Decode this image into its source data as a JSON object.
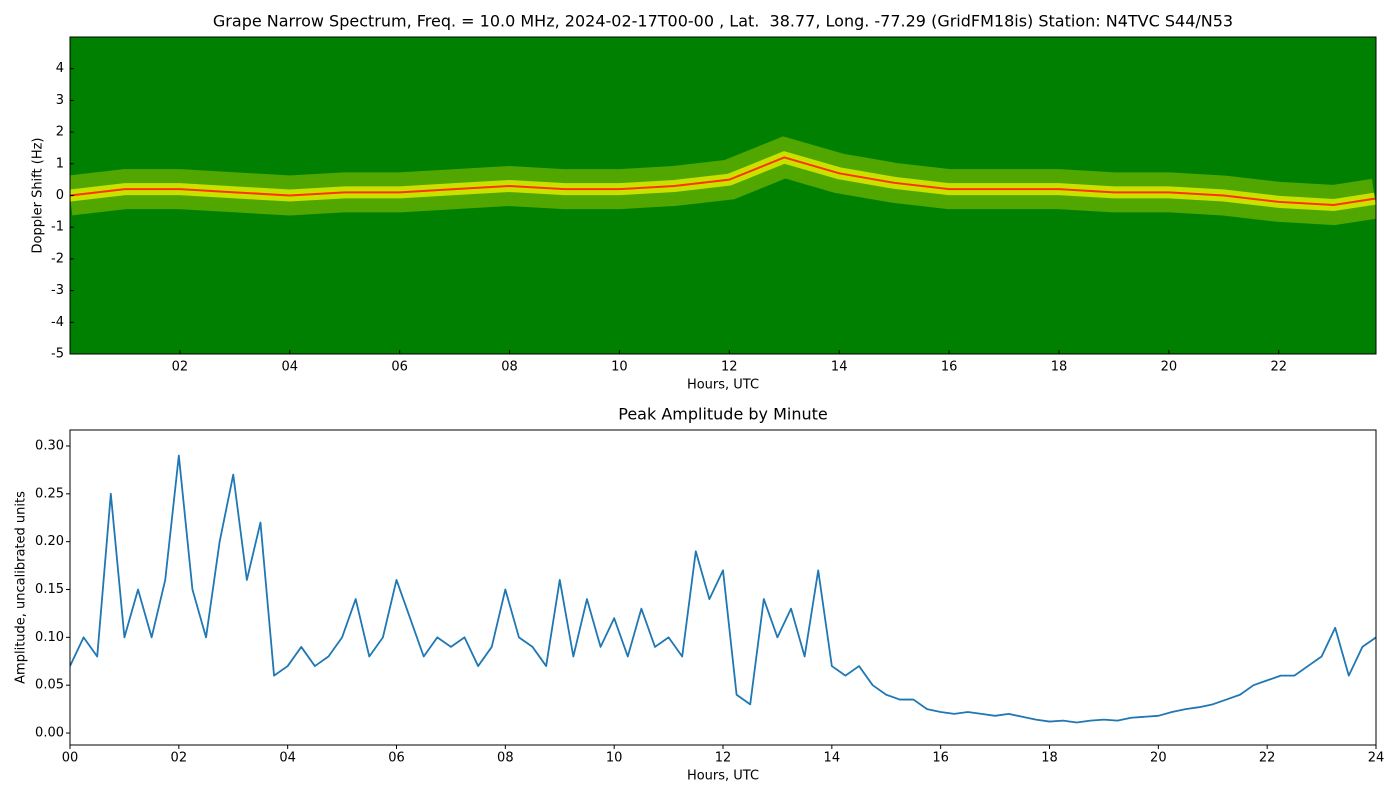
{
  "chart_data": [
    {
      "type": "spectrogram",
      "title": "Grape Narrow Spectrum, Freq. = 10.0 MHz, 2024-02-17T00-00 , Lat.  38.77, Long. -77.29 (GridFM18is) Station: N4TVC S44/N53",
      "xlabel": "Hours, UTC",
      "ylabel": "Doppler Shift (Hz)",
      "background_color": "#008000",
      "band_color": "#e8f000",
      "color": "#ff3300",
      "x": [
        0,
        1,
        2,
        3,
        4,
        5,
        6,
        7,
        8,
        9,
        10,
        11,
        12,
        13,
        14,
        15,
        16,
        17,
        18,
        19,
        20,
        21,
        22,
        23,
        23.75
      ],
      "values": [
        0,
        0.2,
        0.2,
        0.1,
        0,
        0.1,
        0.1,
        0.2,
        0.3,
        0.2,
        0.2,
        0.3,
        0.5,
        1.2,
        0.7,
        0.4,
        0.2,
        0.2,
        0.2,
        0.1,
        0.1,
        0,
        -0.2,
        -0.3,
        -0.1
      ],
      "xlim": [
        0,
        23.77
      ],
      "ylim": [
        -5,
        5
      ],
      "xticks": [
        {
          "value": 2,
          "label": "02"
        },
        {
          "value": 4,
          "label": "04"
        },
        {
          "value": 6,
          "label": "06"
        },
        {
          "value": 8,
          "label": "08"
        },
        {
          "value": 10,
          "label": "10"
        },
        {
          "value": 12,
          "label": "12"
        },
        {
          "value": 14,
          "label": "14"
        },
        {
          "value": 16,
          "label": "16"
        },
        {
          "value": 18,
          "label": "18"
        },
        {
          "value": 20,
          "label": "20"
        },
        {
          "value": 22,
          "label": "22"
        }
      ],
      "yticks": [
        -5,
        -4,
        -3,
        -2,
        -1,
        0,
        1,
        2,
        3,
        4
      ]
    },
    {
      "type": "line",
      "title": "Peak Amplitude by Minute",
      "xlabel": "Hours, UTC",
      "ylabel": "Amplitude, uncalibrated units",
      "color": "#1f77b4",
      "x": [
        0,
        0.25,
        0.5,
        0.75,
        1,
        1.25,
        1.5,
        1.75,
        2,
        2.25,
        2.5,
        2.75,
        3,
        3.25,
        3.5,
        3.75,
        4,
        4.25,
        4.5,
        4.75,
        5,
        5.25,
        5.5,
        5.75,
        6,
        6.25,
        6.5,
        6.75,
        7,
        7.25,
        7.5,
        7.75,
        8,
        8.25,
        8.5,
        8.75,
        9,
        9.25,
        9.5,
        9.75,
        10,
        10.25,
        10.5,
        10.75,
        11,
        11.25,
        11.5,
        11.75,
        12,
        12.25,
        12.5,
        12.75,
        13,
        13.25,
        13.5,
        13.75,
        14,
        14.25,
        14.5,
        14.75,
        15,
        15.25,
        15.5,
        15.75,
        16,
        16.25,
        16.5,
        16.75,
        17,
        17.25,
        17.5,
        17.75,
        18,
        18.25,
        18.5,
        18.75,
        19,
        19.25,
        19.5,
        19.75,
        20,
        20.25,
        20.5,
        20.75,
        21,
        21.25,
        21.5,
        21.75,
        22,
        22.25,
        22.5,
        22.75,
        23,
        23.25,
        23.5,
        23.75,
        24
      ],
      "values": [
        0.07,
        0.1,
        0.08,
        0.25,
        0.1,
        0.15,
        0.1,
        0.16,
        0.29,
        0.15,
        0.1,
        0.2,
        0.27,
        0.16,
        0.22,
        0.06,
        0.07,
        0.09,
        0.07,
        0.08,
        0.1,
        0.14,
        0.08,
        0.1,
        0.16,
        0.12,
        0.08,
        0.1,
        0.09,
        0.1,
        0.07,
        0.09,
        0.15,
        0.1,
        0.09,
        0.07,
        0.16,
        0.08,
        0.14,
        0.09,
        0.12,
        0.08,
        0.13,
        0.09,
        0.1,
        0.08,
        0.19,
        0.14,
        0.17,
        0.04,
        0.03,
        0.14,
        0.1,
        0.13,
        0.08,
        0.17,
        0.07,
        0.06,
        0.07,
        0.05,
        0.04,
        0.035,
        0.035,
        0.025,
        0.022,
        0.02,
        0.022,
        0.02,
        0.018,
        0.02,
        0.017,
        0.014,
        0.012,
        0.013,
        0.011,
        0.013,
        0.014,
        0.013,
        0.016,
        0.017,
        0.018,
        0.022,
        0.025,
        0.027,
        0.03,
        0.035,
        0.04,
        0.05,
        0.055,
        0.06,
        0.06,
        0.07,
        0.08,
        0.11,
        0.06,
        0.09,
        0.1
      ],
      "xlim": [
        0,
        24
      ],
      "ylim": [
        -0.0125,
        0.3167
      ],
      "xticks": [
        {
          "value": 0,
          "label": "00"
        },
        {
          "value": 2,
          "label": "02"
        },
        {
          "value": 4,
          "label": "04"
        },
        {
          "value": 6,
          "label": "06"
        },
        {
          "value": 8,
          "label": "08"
        },
        {
          "value": 10,
          "label": "10"
        },
        {
          "value": 12,
          "label": "12"
        },
        {
          "value": 14,
          "label": "14"
        },
        {
          "value": 16,
          "label": "16"
        },
        {
          "value": 18,
          "label": "18"
        },
        {
          "value": 20,
          "label": "20"
        },
        {
          "value": 22,
          "label": "22"
        },
        {
          "value": 24,
          "label": "24"
        }
      ],
      "yticks": [
        {
          "value": 0,
          "label": "0.00"
        },
        {
          "value": 0.05,
          "label": "0.05"
        },
        {
          "value": 0.1,
          "label": "0.10"
        },
        {
          "value": 0.15,
          "label": "0.15"
        },
        {
          "value": 0.2,
          "label": "0.20"
        },
        {
          "value": 0.25,
          "label": "0.25"
        },
        {
          "value": 0.3,
          "label": "0.30"
        }
      ]
    }
  ]
}
